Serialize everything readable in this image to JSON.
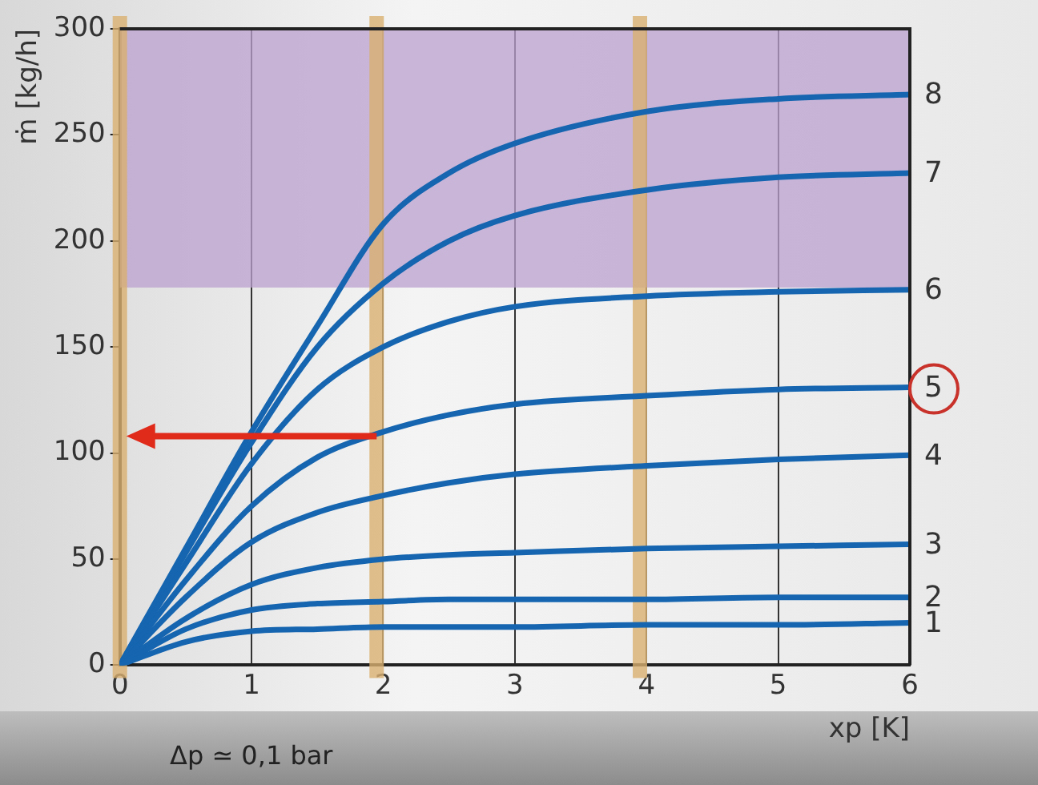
{
  "chart_data": {
    "type": "line",
    "xlabel": "xp [K]",
    "ylabel": "ṁ [kg/h]",
    "x": [
      0,
      0.5,
      1,
      1.5,
      2,
      2.5,
      3,
      4,
      5,
      6
    ],
    "series": [
      {
        "name": "1",
        "color": "#1565b0",
        "values": [
          0,
          11,
          16,
          17,
          18,
          18,
          18,
          19,
          19,
          20
        ]
      },
      {
        "name": "2",
        "color": "#1565b0",
        "values": [
          0,
          17,
          26,
          29,
          30,
          31,
          31,
          31,
          32,
          32
        ]
      },
      {
        "name": "3",
        "color": "#1565b0",
        "values": [
          0,
          22,
          38,
          46,
          50,
          52,
          53,
          55,
          56,
          57
        ]
      },
      {
        "name": "4",
        "color": "#1565b0",
        "values": [
          0,
          32,
          58,
          72,
          80,
          86,
          90,
          94,
          97,
          99
        ]
      },
      {
        "name": "5",
        "color": "#1565b0",
        "values": [
          0,
          40,
          75,
          98,
          110,
          118,
          123,
          127,
          130,
          131
        ]
      },
      {
        "name": "6",
        "color": "#1565b0",
        "values": [
          0,
          48,
          95,
          130,
          150,
          162,
          169,
          174,
          176,
          177
        ]
      },
      {
        "name": "7",
        "color": "#1565b0",
        "values": [
          0,
          53,
          105,
          150,
          180,
          200,
          212,
          224,
          230,
          232
        ]
      },
      {
        "name": "8",
        "color": "#1565b0",
        "values": [
          0,
          55,
          110,
          160,
          208,
          232,
          246,
          261,
          267,
          269
        ]
      }
    ],
    "xlim": [
      0,
      6
    ],
    "xticks": [
      0,
      1,
      2,
      3,
      4,
      5,
      6
    ],
    "ylim": [
      0,
      300
    ],
    "yticks": [
      0,
      50,
      100,
      150,
      200,
      250,
      300
    ],
    "grid": "x",
    "legend": false,
    "marker": "none",
    "line_style": "solid",
    "ref_lines": [
      {
        "axis": "x",
        "value": 0,
        "color": "#d9b071"
      },
      {
        "axis": "x",
        "value": 1.95,
        "color": "#d9b071"
      },
      {
        "axis": "x",
        "value": 3.95,
        "color": "#d9b071"
      }
    ],
    "bands": [
      {
        "axis": "y",
        "from": 178,
        "to": 300,
        "color": "#b9a0cf"
      }
    ],
    "annotations": [
      "Δp ≃ 0,1 bar"
    ]
  }
}
